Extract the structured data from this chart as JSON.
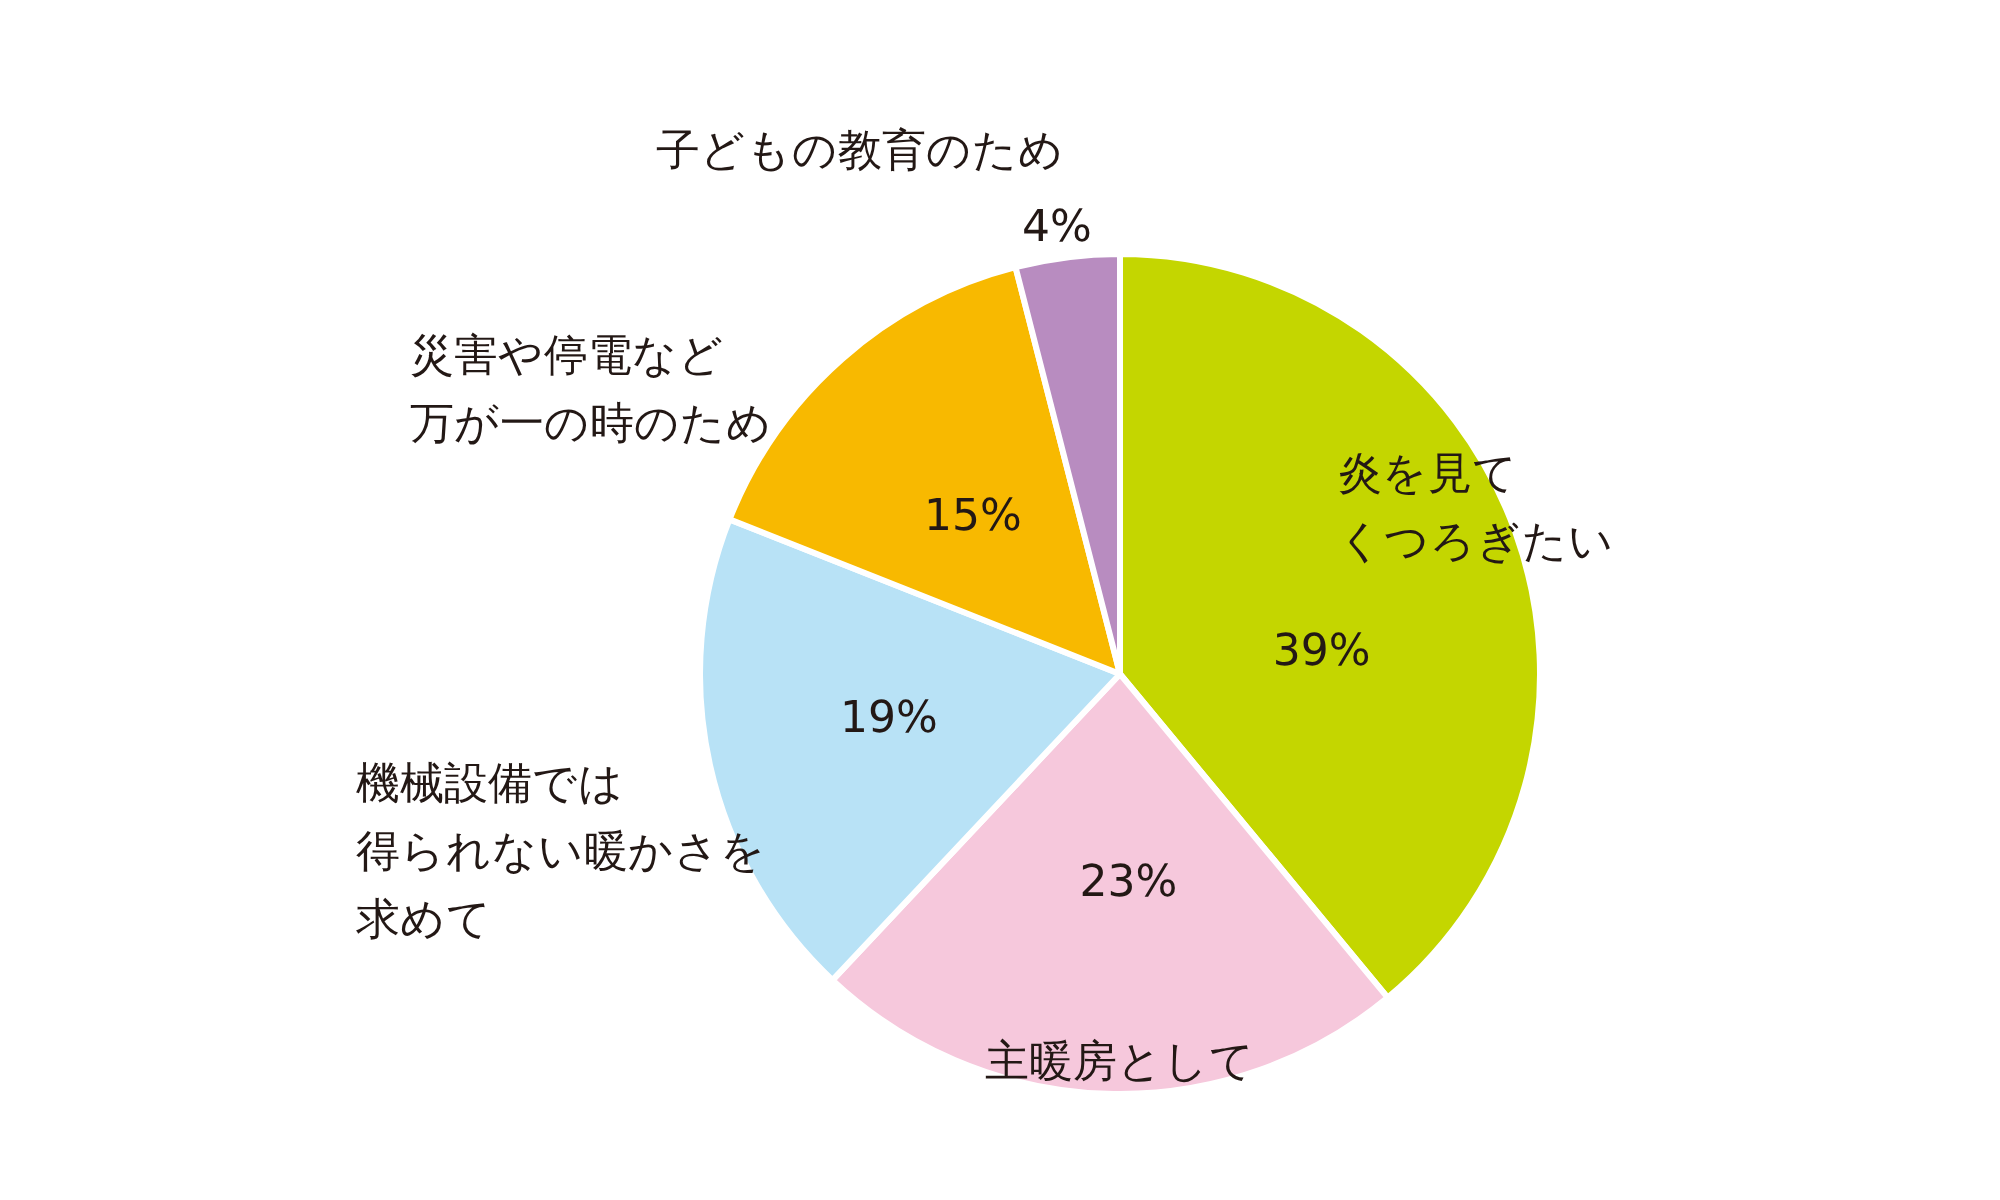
{
  "chart_data": {
    "type": "pie",
    "categories": [
      "炎を見てくつろぎたい",
      "主暖房として",
      "機械設備では得られない暖かさを求めて",
      "災害や停電など万が一の時のため",
      "子どもの教育のため"
    ],
    "values": [
      39,
      23,
      19,
      15,
      4
    ],
    "value_labels": [
      "39%",
      "23%",
      "19%",
      "15%",
      "4%"
    ],
    "colors": [
      "#c4d600",
      "#f6c8dc",
      "#b8e2f6",
      "#f8b900",
      "#b88cc0"
    ]
  }
}
